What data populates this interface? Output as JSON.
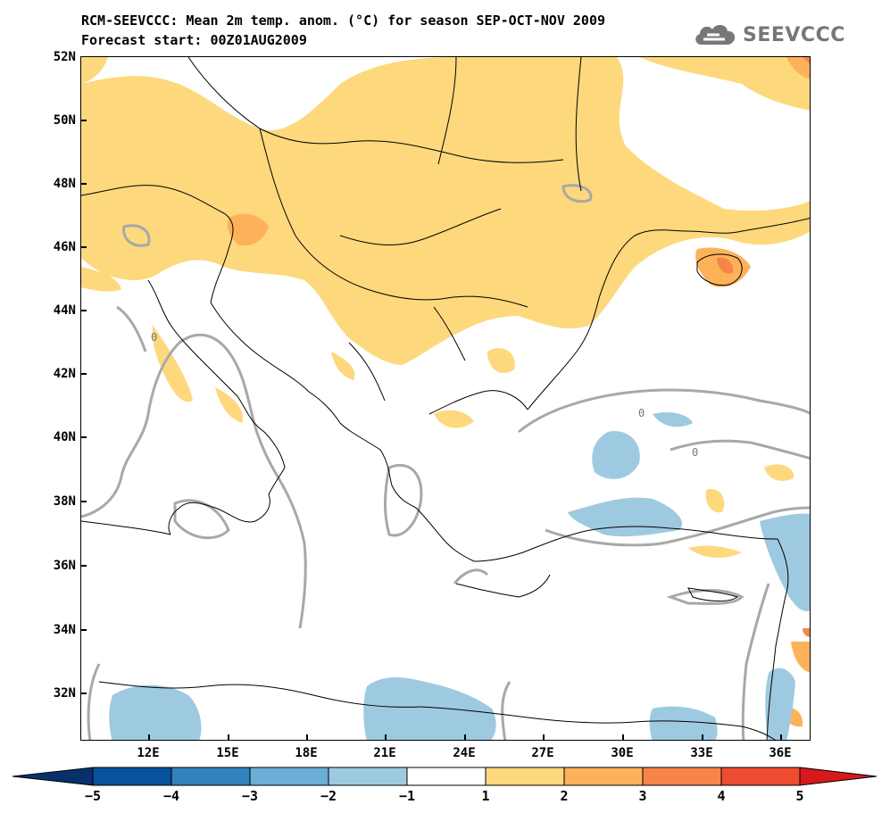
{
  "header": {
    "title_line1": "RCM-SEEVCCC: Mean 2m temp. anom. (°C) for season SEP-OCT-NOV 2009",
    "title_line2": "Forecast start: 00Z01AUG2009"
  },
  "logo": {
    "text": "SEEVCCC",
    "icon": "cloud-icon"
  },
  "map": {
    "lat_labels": [
      "52N",
      "50N",
      "48N",
      "46N",
      "44N",
      "42N",
      "40N",
      "38N",
      "36N",
      "34N",
      "32N"
    ],
    "lon_labels": [
      "12E",
      "15E",
      "18E",
      "21E",
      "24E",
      "27E",
      "30E",
      "33E",
      "36E"
    ],
    "contour_label": "0",
    "colors": {
      "warm1": "#fdd87d",
      "warm2": "#fdb25a",
      "warm3": "#f8844a",
      "warm4": "#ee4c30",
      "cool1": "#9ecae1",
      "cool2": "#6baed6",
      "contour": "#a8a8a8",
      "coast": "#000000"
    }
  },
  "colorbar": {
    "labels": [
      "−5",
      "−4",
      "−3",
      "−2",
      "−1",
      "1",
      "2",
      "3",
      "4",
      "5"
    ],
    "colors": [
      "#08519c",
      "#3182bd",
      "#6baed6",
      "#9ecae1",
      "#ffffff",
      "#fdd87d",
      "#fdb25a",
      "#f8844a",
      "#ee4c30"
    ],
    "left_arrow_color": "#08306b",
    "right_arrow_color": "#d7191c"
  }
}
